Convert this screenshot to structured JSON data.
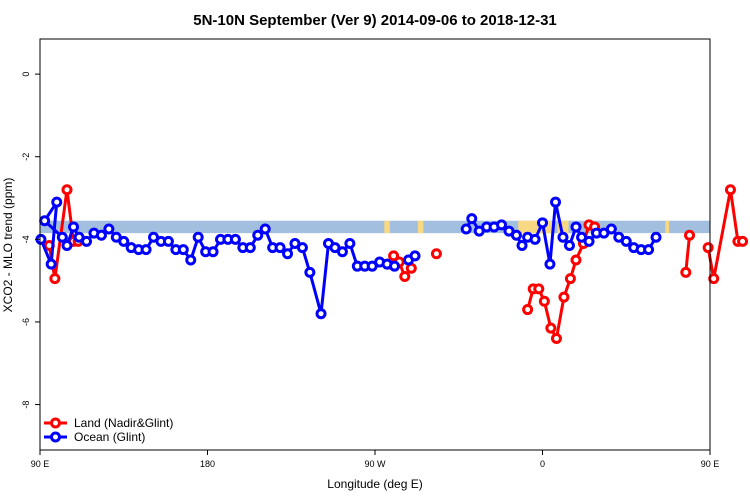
{
  "chart_data": {
    "type": "line",
    "title": "5N-10N September (Ver 9)   2014-09-06 to 2018-12-31",
    "xlabel": "Longitude (deg E)",
    "ylabel": "XCO2 - MLO trend (ppm)",
    "xlim": [
      90,
      450
    ],
    "ylim": [
      -9.1,
      0.85
    ],
    "x_ticks": [
      {
        "value": 90,
        "label": "90 E"
      },
      {
        "value": 180,
        "label": "180"
      },
      {
        "value": 270,
        "label": "90 W"
      },
      {
        "value": 360,
        "label": "0"
      },
      {
        "value": 450,
        "label": "90 E"
      },
      {
        "value": 540,
        "label": "180"
      }
    ],
    "y_ticks": [
      {
        "value": 0,
        "label": "0"
      },
      {
        "value": -2,
        "label": "-2"
      },
      {
        "value": -4,
        "label": "-4"
      },
      {
        "value": -6,
        "label": "-6"
      },
      {
        "value": -8,
        "label": "-8"
      }
    ],
    "grid": false,
    "legend": "bottom-left",
    "band": {
      "y_min": -3.85,
      "y_max": -3.55,
      "ocean_color": "#a3bfe0",
      "land_color": "#f8d882"
    },
    "land_strips": [
      [
        275,
        278
      ],
      [
        293,
        296
      ],
      [
        347,
        365
      ],
      [
        368,
        374
      ],
      [
        426,
        428
      ]
    ],
    "series": [
      {
        "name": "Land (Nadir&Glint)",
        "color": "#ff0000",
        "segments": [
          [
            [
              95,
              -4.15
            ],
            [
              98,
              -4.95
            ],
            [
              104.5,
              -2.8
            ],
            [
              108,
              -4.05
            ],
            [
              110.5,
              -4.05
            ]
          ],
          [
            [
              277,
              -4.6
            ],
            [
              280,
              -4.4
            ],
            [
              283,
              -4.55
            ],
            [
              286,
              -4.9
            ],
            [
              289.5,
              -4.7
            ]
          ],
          [
            [
              303,
              -4.35
            ]
          ],
          [
            [
              352,
              -5.7
            ],
            [
              355,
              -5.2
            ],
            [
              358,
              -5.2
            ],
            [
              361,
              -5.5
            ],
            [
              364.5,
              -6.15
            ],
            [
              367.5,
              -6.4
            ],
            [
              371.5,
              -5.4
            ],
            [
              375,
              -4.95
            ],
            [
              378,
              -4.5
            ],
            [
              382,
              -4.1
            ],
            [
              385,
              -3.65
            ],
            [
              388,
              -3.7
            ]
          ],
          [
            [
              437,
              -4.8
            ],
            [
              439,
              -3.9
            ]
          ],
          [
            [
              449,
              -4.2
            ],
            [
              452,
              -4.95
            ],
            [
              461,
              -2.8
            ],
            [
              465,
              -4.05
            ],
            [
              467.5,
              -4.05
            ]
          ]
        ]
      },
      {
        "name": "Ocean (Glint)",
        "color": "#0000ff",
        "segments": [
          [
            [
              90.5,
              -4.0
            ],
            [
              96,
              -4.6
            ],
            [
              99,
              -3.1
            ],
            [
              92.5,
              -3.55
            ],
            [
              102,
              -3.95
            ],
            [
              104.5,
              -4.15
            ],
            [
              108,
              -3.7
            ],
            [
              111,
              -3.95
            ],
            [
              115,
              -4.05
            ],
            [
              119,
              -3.85
            ],
            [
              123,
              -3.9
            ],
            [
              127,
              -3.75
            ],
            [
              131,
              -3.95
            ],
            [
              135,
              -4.05
            ],
            [
              139,
              -4.2
            ],
            [
              143,
              -4.25
            ],
            [
              147,
              -4.25
            ],
            [
              151,
              -3.95
            ],
            [
              155,
              -4.05
            ],
            [
              159,
              -4.05
            ],
            [
              163,
              -4.25
            ],
            [
              167,
              -4.25
            ],
            [
              171,
              -4.5
            ],
            [
              175,
              -3.95
            ],
            [
              179,
              -4.3
            ],
            [
              183,
              -4.3
            ],
            [
              187,
              -4.0
            ],
            [
              191,
              -4.0
            ],
            [
              195,
              -4.0
            ],
            [
              199,
              -4.2
            ],
            [
              203,
              -4.2
            ],
            [
              207,
              -3.9
            ],
            [
              211,
              -3.75
            ],
            [
              215,
              -4.2
            ],
            [
              219,
              -4.2
            ],
            [
              223,
              -4.35
            ],
            [
              227,
              -4.1
            ],
            [
              231,
              -4.2
            ],
            [
              235,
              -4.8
            ],
            [
              241,
              -5.8
            ],
            [
              245,
              -4.1
            ],
            [
              248.5,
              -4.2
            ],
            [
              252.5,
              -4.3
            ],
            [
              256.5,
              -4.1
            ],
            [
              260.5,
              -4.65
            ],
            [
              264.5,
              -4.65
            ],
            [
              268.5,
              -4.65
            ],
            [
              272.5,
              -4.55
            ],
            [
              276.5,
              -4.6
            ],
            [
              280.5,
              -4.65
            ]
          ],
          [
            [
              288,
              -4.5
            ],
            [
              291.5,
              -4.4
            ]
          ],
          [
            [
              319,
              -3.75
            ],
            [
              322,
              -3.5
            ],
            [
              326,
              -3.8
            ],
            [
              330,
              -3.7
            ],
            [
              334,
              -3.7
            ],
            [
              338,
              -3.65
            ],
            [
              342,
              -3.8
            ],
            [
              346,
              -3.9
            ],
            [
              349,
              -4.15
            ],
            [
              352,
              -3.95
            ],
            [
              356,
              -4.0
            ],
            [
              360,
              -3.6
            ],
            [
              364,
              -4.6
            ],
            [
              367,
              -3.1
            ],
            [
              371,
              -3.95
            ],
            [
              374.5,
              -4.15
            ],
            [
              378,
              -3.7
            ],
            [
              381,
              -3.95
            ],
            [
              385,
              -4.05
            ],
            [
              389,
              -3.85
            ],
            [
              393,
              -3.85
            ],
            [
              397,
              -3.75
            ],
            [
              401,
              -3.95
            ],
            [
              405,
              -4.05
            ],
            [
              409,
              -4.2
            ],
            [
              413,
              -4.25
            ],
            [
              417,
              -4.25
            ],
            [
              421,
              -3.95
            ]
          ]
        ]
      }
    ]
  }
}
